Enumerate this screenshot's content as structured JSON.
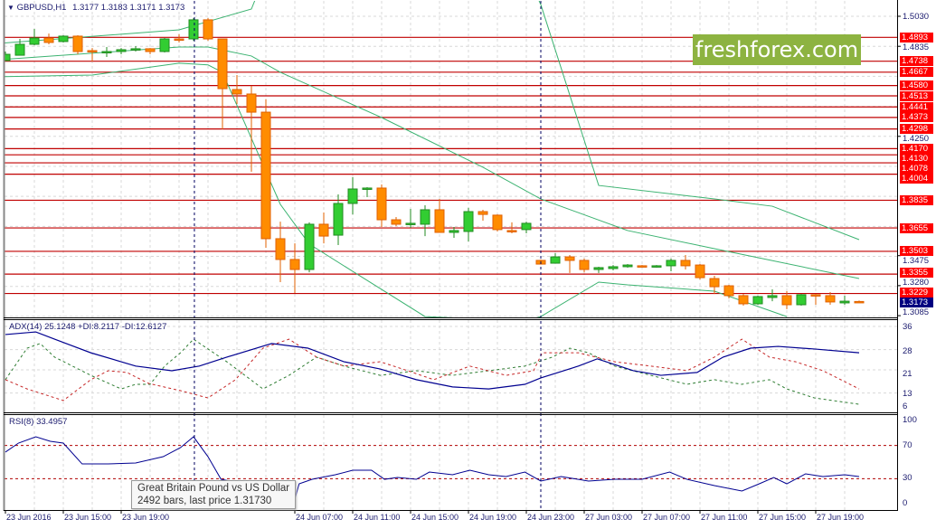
{
  "header": {
    "symbol": "GBPUSD,H1",
    "ohlc": "1.3177 1.3183 1.3171 1.3173"
  },
  "logo_text": "freshforex.com",
  "colors": {
    "bull": "#32cd32",
    "bear": "#ff8c00",
    "level": "#c00000",
    "band": "#3cb371",
    "adx": "#000090",
    "plus_di": "#2e7d32",
    "minus_di": "#c62828",
    "current": "#000080"
  },
  "price_axis": {
    "ticks": [
      "1.5030",
      "1.4835",
      "1.4250",
      "1.3475",
      "1.3280",
      "1.3085"
    ],
    "levels": [
      "1.4893",
      "1.4738",
      "1.4667",
      "1.4580",
      "1.4513",
      "1.4441",
      "1.4373",
      "1.4298",
      "1.4170",
      "1.4130",
      "1.4078",
      "1.4004",
      "1.3835",
      "1.3655",
      "1.3503",
      "1.3355",
      "1.3229"
    ],
    "current": "1.3173"
  },
  "candles": [
    [
      1.4742,
      1.4801,
      1.4742,
      1.4783
    ],
    [
      1.4777,
      1.4883,
      1.4777,
      1.4848
    ],
    [
      1.4848,
      1.4948,
      1.4842,
      1.4889
    ],
    [
      1.4889,
      1.4918,
      1.4848,
      1.486
    ],
    [
      1.4866,
      1.4907,
      1.486,
      1.4901
    ],
    [
      1.4901,
      1.4907,
      1.4783,
      1.4801
    ],
    [
      1.4807,
      1.4824,
      1.4736,
      1.4801
    ],
    [
      1.4795,
      1.483,
      1.4766,
      1.4801
    ],
    [
      1.4801,
      1.4824,
      1.4783,
      1.4813
    ],
    [
      1.4813,
      1.4836,
      1.4801,
      1.4819
    ],
    [
      1.4819,
      1.4824,
      1.4783,
      1.4801
    ],
    [
      1.4801,
      1.4889,
      1.4795,
      1.4883
    ],
    [
      1.4883,
      1.4913,
      1.486,
      1.4877
    ],
    [
      1.4883,
      1.5018,
      1.4871,
      1.5007
    ],
    [
      1.5007,
      1.5018,
      1.4871,
      1.4883
    ],
    [
      1.4883,
      1.4883,
      1.4296,
      1.456
    ],
    [
      1.4554,
      1.4648,
      1.446,
      1.4525
    ],
    [
      1.4525,
      1.4578,
      1.402,
      1.4407
    ],
    [
      1.4407,
      1.449,
      1.3526,
      1.3585
    ],
    [
      1.3585,
      1.3696,
      1.3303,
      1.345
    ],
    [
      1.345,
      1.3555,
      1.3232,
      1.3385
    ],
    [
      1.3385,
      1.3691,
      1.3367,
      1.3679
    ],
    [
      1.3679,
      1.3755,
      1.3555,
      1.3602
    ],
    [
      1.3608,
      1.3873,
      1.3544,
      1.3814
    ],
    [
      1.3814,
      1.3984,
      1.3743,
      1.3908
    ],
    [
      1.3908,
      1.392,
      1.3855,
      1.3914
    ],
    [
      1.3914,
      1.3937,
      1.3661,
      1.3708
    ],
    [
      1.3708,
      1.3726,
      1.3667,
      1.3679
    ],
    [
      1.3679,
      1.3779,
      1.3655,
      1.3685
    ],
    [
      1.3679,
      1.3802,
      1.3602,
      1.3773
    ],
    [
      1.3773,
      1.3843,
      1.3626,
      1.3626
    ],
    [
      1.3626,
      1.3661,
      1.3591,
      1.3638
    ],
    [
      1.3632,
      1.3785,
      1.3567,
      1.3761
    ],
    [
      1.3761,
      1.3773,
      1.3702,
      1.3743
    ],
    [
      1.3738,
      1.3743,
      1.3632,
      1.3644
    ],
    [
      1.3638,
      1.3691,
      1.362,
      1.3632
    ],
    [
      1.3644,
      1.3696,
      1.362,
      1.3685
    ],
    [
      1.3444,
      1.345,
      1.342,
      1.342
    ],
    [
      1.3426,
      1.3491,
      1.3426,
      1.3467
    ],
    [
      1.3467,
      1.3479,
      1.3362,
      1.3444
    ],
    [
      1.3444,
      1.3456,
      1.3367,
      1.3385
    ],
    [
      1.3385,
      1.3403,
      1.3362,
      1.3397
    ],
    [
      1.3391,
      1.3414,
      1.3379,
      1.3403
    ],
    [
      1.3403,
      1.342,
      1.3397,
      1.3414
    ],
    [
      1.3409,
      1.3414,
      1.3397,
      1.3403
    ],
    [
      1.3403,
      1.3414,
      1.3397,
      1.3409
    ],
    [
      1.3409,
      1.3456,
      1.3373,
      1.3444
    ],
    [
      1.3444,
      1.3479,
      1.3385,
      1.3409
    ],
    [
      1.3414,
      1.342,
      1.332,
      1.3332
    ],
    [
      1.3326,
      1.3344,
      1.3226,
      1.3273
    ],
    [
      1.3279,
      1.3285,
      1.3197,
      1.3215
    ],
    [
      1.3215,
      1.3226,
      1.315,
      1.3162
    ],
    [
      1.3162,
      1.3215,
      1.3156,
      1.3209
    ],
    [
      1.3203,
      1.3256,
      1.3179,
      1.3215
    ],
    [
      1.3215,
      1.3244,
      1.3127,
      1.3156
    ],
    [
      1.3156,
      1.3226,
      1.315,
      1.3221
    ],
    [
      1.3221,
      1.3226,
      1.3156,
      1.3215
    ],
    [
      1.3215,
      1.3238,
      1.3156,
      1.3174
    ],
    [
      1.3168,
      1.3215,
      1.3156,
      1.3179
    ],
    [
      1.3177,
      1.3183,
      1.3171,
      1.3173
    ]
  ],
  "bands": {
    "upper": [
      [
        -0.4,
        1.4854
      ],
      [
        12,
        1.4942
      ],
      [
        17,
        1.5077
      ],
      [
        18,
        1.5312
      ],
      [
        36,
        1.5312
      ],
      [
        37,
        1.5106
      ],
      [
        41,
        1.3931
      ],
      [
        49,
        1.3843
      ],
      [
        53,
        1.3796
      ],
      [
        59,
        1.3579
      ]
    ],
    "middle": [
      [
        -0.4,
        1.4748
      ],
      [
        12,
        1.483
      ],
      [
        14,
        1.483
      ],
      [
        17,
        1.4772
      ],
      [
        19,
        1.4666
      ],
      [
        26,
        1.4372
      ],
      [
        33,
        1.4049
      ],
      [
        37,
        1.3843
      ],
      [
        43,
        1.3638
      ],
      [
        49,
        1.352
      ],
      [
        59,
        1.3326
      ]
    ],
    "lower": [
      [
        -0.4,
        1.4637
      ],
      [
        6,
        1.4648
      ],
      [
        12,
        1.4725
      ],
      [
        14,
        1.4714
      ],
      [
        15,
        1.4666
      ],
      [
        19,
        1.3808
      ],
      [
        21,
        1.355
      ],
      [
        24,
        1.3373
      ],
      [
        29,
        1.3079
      ],
      [
        36,
        1.305
      ],
      [
        37,
        1.3079
      ],
      [
        41,
        1.3303
      ],
      [
        43,
        1.3285
      ],
      [
        49,
        1.3244
      ],
      [
        54,
        1.3079
      ]
    ]
  },
  "adx": {
    "label": "ADX(14) 25.1248 +DI:8.2117 -DI:12.6127",
    "scale": [
      "36",
      "28",
      "21",
      "13",
      "6"
    ],
    "adx_line": [
      [
        0,
        33.2
      ],
      [
        2.1,
        34.1
      ],
      [
        3.4,
        31.6
      ],
      [
        5.9,
        26.9
      ],
      [
        9,
        22.3
      ],
      [
        11.5,
        20.7
      ],
      [
        13.4,
        22.3
      ],
      [
        15.3,
        25.4
      ],
      [
        18.4,
        30.1
      ],
      [
        20.9,
        28.5
      ],
      [
        23.4,
        23.8
      ],
      [
        25.9,
        21.3
      ],
      [
        28.4,
        17.6
      ],
      [
        30.9,
        15.1
      ],
      [
        33.4,
        14.4
      ],
      [
        35.9,
        16
      ],
      [
        37,
        18.2
      ],
      [
        39.6,
        22.3
      ],
      [
        40.9,
        24.8
      ],
      [
        43.4,
        20.7
      ],
      [
        45.3,
        19.1
      ],
      [
        47.8,
        20.1
      ],
      [
        49.6,
        25.4
      ],
      [
        51.5,
        28.5
      ],
      [
        53.4,
        29.1
      ],
      [
        55.9,
        28.2
      ],
      [
        59,
        26.9
      ]
    ],
    "plus_di": [
      [
        0,
        17.6
      ],
      [
        1.5,
        28.5
      ],
      [
        2.4,
        30.1
      ],
      [
        3.4,
        25.4
      ],
      [
        5.9,
        19.1
      ],
      [
        8,
        14.4
      ],
      [
        9,
        16
      ],
      [
        10,
        16
      ],
      [
        11,
        22.3
      ],
      [
        12.1,
        26.9
      ],
      [
        13,
        31.6
      ],
      [
        15.3,
        23.8
      ],
      [
        17.8,
        14.4
      ],
      [
        19.6,
        19.1
      ],
      [
        21.5,
        25.4
      ],
      [
        23.4,
        22.3
      ],
      [
        25.9,
        19.1
      ],
      [
        28.4,
        20.7
      ],
      [
        30.9,
        19.1
      ],
      [
        33.4,
        20.7
      ],
      [
        35.9,
        22.3
      ],
      [
        37.8,
        25.4
      ],
      [
        39,
        28.5
      ],
      [
        40.3,
        26.9
      ],
      [
        42.1,
        22.3
      ],
      [
        44.6,
        19.1
      ],
      [
        47.1,
        16
      ],
      [
        49,
        17.6
      ],
      [
        50.9,
        16
      ],
      [
        52.8,
        17.6
      ],
      [
        54,
        14.4
      ],
      [
        55.9,
        11.3
      ],
      [
        59,
        9.1
      ]
    ],
    "minus_di": [
      [
        0,
        17.6
      ],
      [
        1.5,
        14.4
      ],
      [
        4,
        10.4
      ],
      [
        5.9,
        17.6
      ],
      [
        7.1,
        20.7
      ],
      [
        8.4,
        20.1
      ],
      [
        9.9,
        16.3
      ],
      [
        12.1,
        13.8
      ],
      [
        14,
        11.3
      ],
      [
        15.9,
        17.6
      ],
      [
        17.8,
        28.5
      ],
      [
        19.6,
        31.6
      ],
      [
        21.5,
        25.4
      ],
      [
        23.4,
        22.3
      ],
      [
        25.9,
        23.8
      ],
      [
        27.8,
        20.7
      ],
      [
        29.6,
        17.6
      ],
      [
        32.1,
        22.3
      ],
      [
        34.6,
        19.1
      ],
      [
        36.5,
        20.7
      ],
      [
        37.1,
        26.9
      ],
      [
        39.6,
        26.9
      ],
      [
        42.1,
        23.8
      ],
      [
        44.6,
        22.3
      ],
      [
        47.1,
        20.7
      ],
      [
        49,
        25.4
      ],
      [
        50.9,
        31.6
      ],
      [
        52.8,
        25.4
      ],
      [
        54.6,
        23.8
      ],
      [
        56.5,
        20.7
      ],
      [
        59,
        14.4
      ]
    ]
  },
  "rsi": {
    "label": "RSI(8) 33.4957",
    "scale": [
      "100",
      "70",
      "30",
      "0"
    ],
    "levels": [
      70,
      30
    ],
    "line": [
      [
        0,
        62
      ],
      [
        0.9,
        72.8
      ],
      [
        2.1,
        80.4
      ],
      [
        3.1,
        75
      ],
      [
        4,
        72.8
      ],
      [
        5.3,
        47.8
      ],
      [
        7.1,
        47.8
      ],
      [
        9,
        48.9
      ],
      [
        10.9,
        56.5
      ],
      [
        12.1,
        67.4
      ],
      [
        13,
        80.4
      ],
      [
        14,
        56.5
      ],
      [
        14.9,
        29.3
      ],
      [
        16.5,
        23.9
      ],
      [
        17.8,
        13
      ],
      [
        18.4,
        5.4
      ],
      [
        20,
        5.4
      ],
      [
        20.3,
        23.9
      ],
      [
        21.2,
        29.3
      ],
      [
        22.8,
        34.8
      ],
      [
        24,
        40.2
      ],
      [
        25.3,
        40.2
      ],
      [
        26.2,
        29.3
      ],
      [
        27.1,
        31.5
      ],
      [
        28.4,
        29.3
      ],
      [
        29.3,
        38
      ],
      [
        30.9,
        34.8
      ],
      [
        32.1,
        40.2
      ],
      [
        33.4,
        34.8
      ],
      [
        34.6,
        32.6
      ],
      [
        35.9,
        38
      ],
      [
        37,
        27.2
      ],
      [
        38.4,
        32.6
      ],
      [
        40.3,
        27.2
      ],
      [
        42.1,
        29.3
      ],
      [
        44,
        29.3
      ],
      [
        45.9,
        38
      ],
      [
        47.1,
        29.3
      ],
      [
        49,
        21.7
      ],
      [
        50.9,
        15.2
      ],
      [
        52.1,
        23.9
      ],
      [
        53.1,
        31.5
      ],
      [
        54,
        23.9
      ],
      [
        55.3,
        35.9
      ],
      [
        56.5,
        32.6
      ],
      [
        58,
        34.8
      ],
      [
        59,
        32.6
      ]
    ]
  },
  "time_axis": [
    {
      "label": "23 Jun 2016",
      "bar": 0
    },
    {
      "label": "23 Jun 15:00",
      "bar": 4
    },
    {
      "label": "23 Jun 19:00",
      "bar": 8
    },
    {
      "label": "24 Jun 07:00",
      "bar": 20
    },
    {
      "label": "24 Jun 11:00",
      "bar": 24
    },
    {
      "label": "24 Jun 15:00",
      "bar": 28
    },
    {
      "label": "24 Jun 19:00",
      "bar": 32
    },
    {
      "label": "24 Jun 23:00",
      "bar": 36
    },
    {
      "label": "27 Jun 03:00",
      "bar": 40
    },
    {
      "label": "27 Jun 07:00",
      "bar": 44
    },
    {
      "label": "27 Jun 11:00",
      "bar": 48
    },
    {
      "label": "27 Jun 15:00",
      "bar": 52
    },
    {
      "label": "27 Jun 19:00",
      "bar": 56
    }
  ],
  "separators": [
    13.06,
    37
  ],
  "tooltip": {
    "line1": "Great Britain Pound vs US Dollar",
    "line2": "2492 bars, last price 1.31730"
  }
}
